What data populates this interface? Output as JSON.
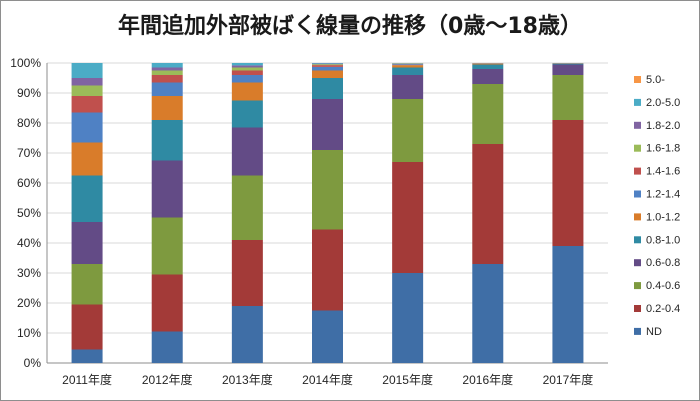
{
  "chart_data": {
    "type": "bar",
    "stacked": "percent",
    "title": "年間追加外部被ばく線量の推移（0歳～18歳）",
    "xlabel": "",
    "ylabel": "",
    "ylim": [
      0,
      100
    ],
    "yticks": [
      "0%",
      "10%",
      "20%",
      "30%",
      "40%",
      "50%",
      "60%",
      "70%",
      "80%",
      "90%",
      "100%"
    ],
    "grid": "horizontal",
    "legend_position": "right",
    "categories": [
      "2011年度",
      "2012年度",
      "2013年度",
      "2014年度",
      "2015年度",
      "2016年度",
      "2017年度"
    ],
    "series": [
      {
        "name": "ND",
        "color": "#3f6ea6",
        "values": [
          4.5,
          10.5,
          19,
          17.5,
          30,
          33,
          39
        ]
      },
      {
        "name": "0.2-0.4",
        "color": "#a33a38",
        "values": [
          15,
          19,
          22,
          27,
          37,
          40,
          42
        ]
      },
      {
        "name": "0.4-0.6",
        "color": "#7e9a3f",
        "values": [
          13.5,
          19,
          21.5,
          26.5,
          21,
          20,
          15
        ]
      },
      {
        "name": "0.6-0.8",
        "color": "#634b86",
        "values": [
          14,
          19,
          16,
          17,
          8,
          5,
          3.5
        ]
      },
      {
        "name": "0.8-1.0",
        "color": "#2f8aa3",
        "values": [
          15.5,
          13.5,
          9,
          7,
          2.5,
          1.5,
          0.3
        ]
      },
      {
        "name": "1.0-1.2",
        "color": "#d97c2a",
        "values": [
          11,
          8,
          6,
          2.5,
          0.8,
          0.3,
          0.1
        ]
      },
      {
        "name": "1.2-1.4",
        "color": "#4f81c4",
        "values": [
          10,
          4.5,
          2.5,
          1.2,
          0.3,
          0.1,
          0.05
        ]
      },
      {
        "name": "1.4-1.6",
        "color": "#c0504d",
        "values": [
          5.5,
          2.5,
          1.5,
          0.6,
          0.15,
          0.05,
          0.03
        ]
      },
      {
        "name": "1.6-1.8",
        "color": "#9bbb59",
        "values": [
          3.5,
          1.5,
          1,
          0.3,
          0.1,
          0.03,
          0.01
        ]
      },
      {
        "name": "1.8-2.0",
        "color": "#8064a2",
        "values": [
          2.5,
          1,
          0.7,
          0.2,
          0.05,
          0.01,
          0.01
        ]
      },
      {
        "name": "2.0-5.0",
        "color": "#4bacc6",
        "values": [
          5,
          1.5,
          0.8,
          0.2,
          0.1,
          0.01,
          0.0
        ]
      },
      {
        "name": "5.0-",
        "color": "#f79646",
        "values": [
          0,
          0,
          0,
          0,
          0,
          0,
          0
        ]
      }
    ]
  }
}
